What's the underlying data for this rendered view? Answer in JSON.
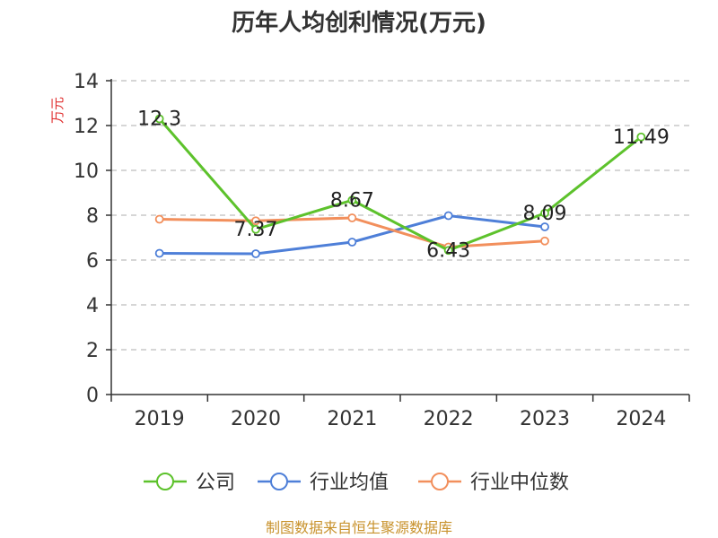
{
  "page": {
    "source_note": "制图数据来自恒生聚源数据库"
  },
  "colors": {
    "company": "#5dc22c",
    "industry_mean": "#4e7fd8",
    "industry_median": "#f28f5c",
    "ylabel": "#e03030",
    "source": "#c8922c",
    "grid": "#c8c8c8",
    "axis": "#333333"
  },
  "chart_data": {
    "type": "line",
    "title": "历年人均创利情况(万元)",
    "ylabel": "万元",
    "xlabel": "",
    "categories": [
      "2019",
      "2020",
      "2021",
      "2022",
      "2023",
      "2024"
    ],
    "ylim": [
      0,
      14
    ],
    "yticks": [
      0,
      2,
      4,
      6,
      8,
      10,
      12,
      14
    ],
    "grid": true,
    "legend_position": "bottom",
    "series": [
      {
        "name": "公司",
        "color_key": "company",
        "values": [
          12.3,
          7.37,
          8.67,
          6.43,
          8.09,
          11.49
        ],
        "labels": [
          "12.3",
          "7.37",
          "8.67",
          "6.43",
          "8.09",
          "11.49"
        ]
      },
      {
        "name": "行业均值",
        "color_key": "industry_mean",
        "values": [
          6.3,
          6.28,
          6.8,
          7.98,
          7.48,
          null
        ]
      },
      {
        "name": "行业中位数",
        "color_key": "industry_median",
        "values": [
          7.82,
          7.75,
          7.88,
          6.58,
          6.85,
          null
        ]
      }
    ]
  }
}
